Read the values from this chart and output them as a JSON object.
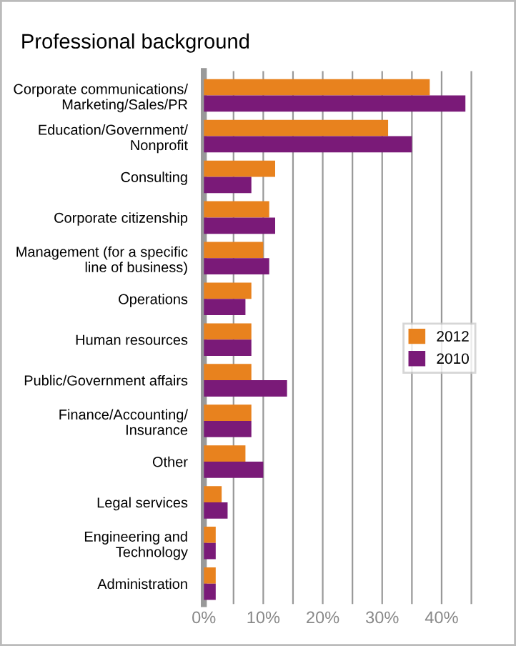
{
  "chart_data": {
    "type": "bar",
    "orientation": "horizontal",
    "title": "Professional background",
    "categories": [
      "Corporate communications/\nMarketing/Sales/PR",
      "Education/Government/\nNonprofit",
      "Consulting",
      "Corporate citizenship",
      "Management (for a specific\nline of business)",
      "Operations",
      "Human resources",
      "Public/Government affairs",
      "Finance/Accounting/\nInsurance",
      "Other",
      "Legal services",
      "Engineering and\nTechnology",
      "Administration"
    ],
    "series": [
      {
        "name": "2012",
        "color": "#e8821e",
        "values": [
          38,
          31,
          12,
          11,
          10,
          8,
          8,
          8,
          8,
          7,
          3,
          2,
          2
        ]
      },
      {
        "name": "2010",
        "color": "#7a1a78",
        "values": [
          44,
          35,
          8,
          12,
          11,
          7,
          8,
          14,
          8,
          10,
          4,
          2,
          2
        ]
      }
    ],
    "xlim": [
      0,
      46
    ],
    "xticks": [
      {
        "value": 0,
        "label": "0%"
      },
      {
        "value": 5,
        "label": null
      },
      {
        "value": 10,
        "label": "10%"
      },
      {
        "value": 15,
        "label": null
      },
      {
        "value": 20,
        "label": "20%"
      },
      {
        "value": 25,
        "label": null
      },
      {
        "value": 30,
        "label": "30%"
      },
      {
        "value": 35,
        "label": null
      },
      {
        "value": 40,
        "label": "40%"
      },
      {
        "value": 45,
        "label": null
      }
    ],
    "grid": "x",
    "legend": "center right"
  }
}
